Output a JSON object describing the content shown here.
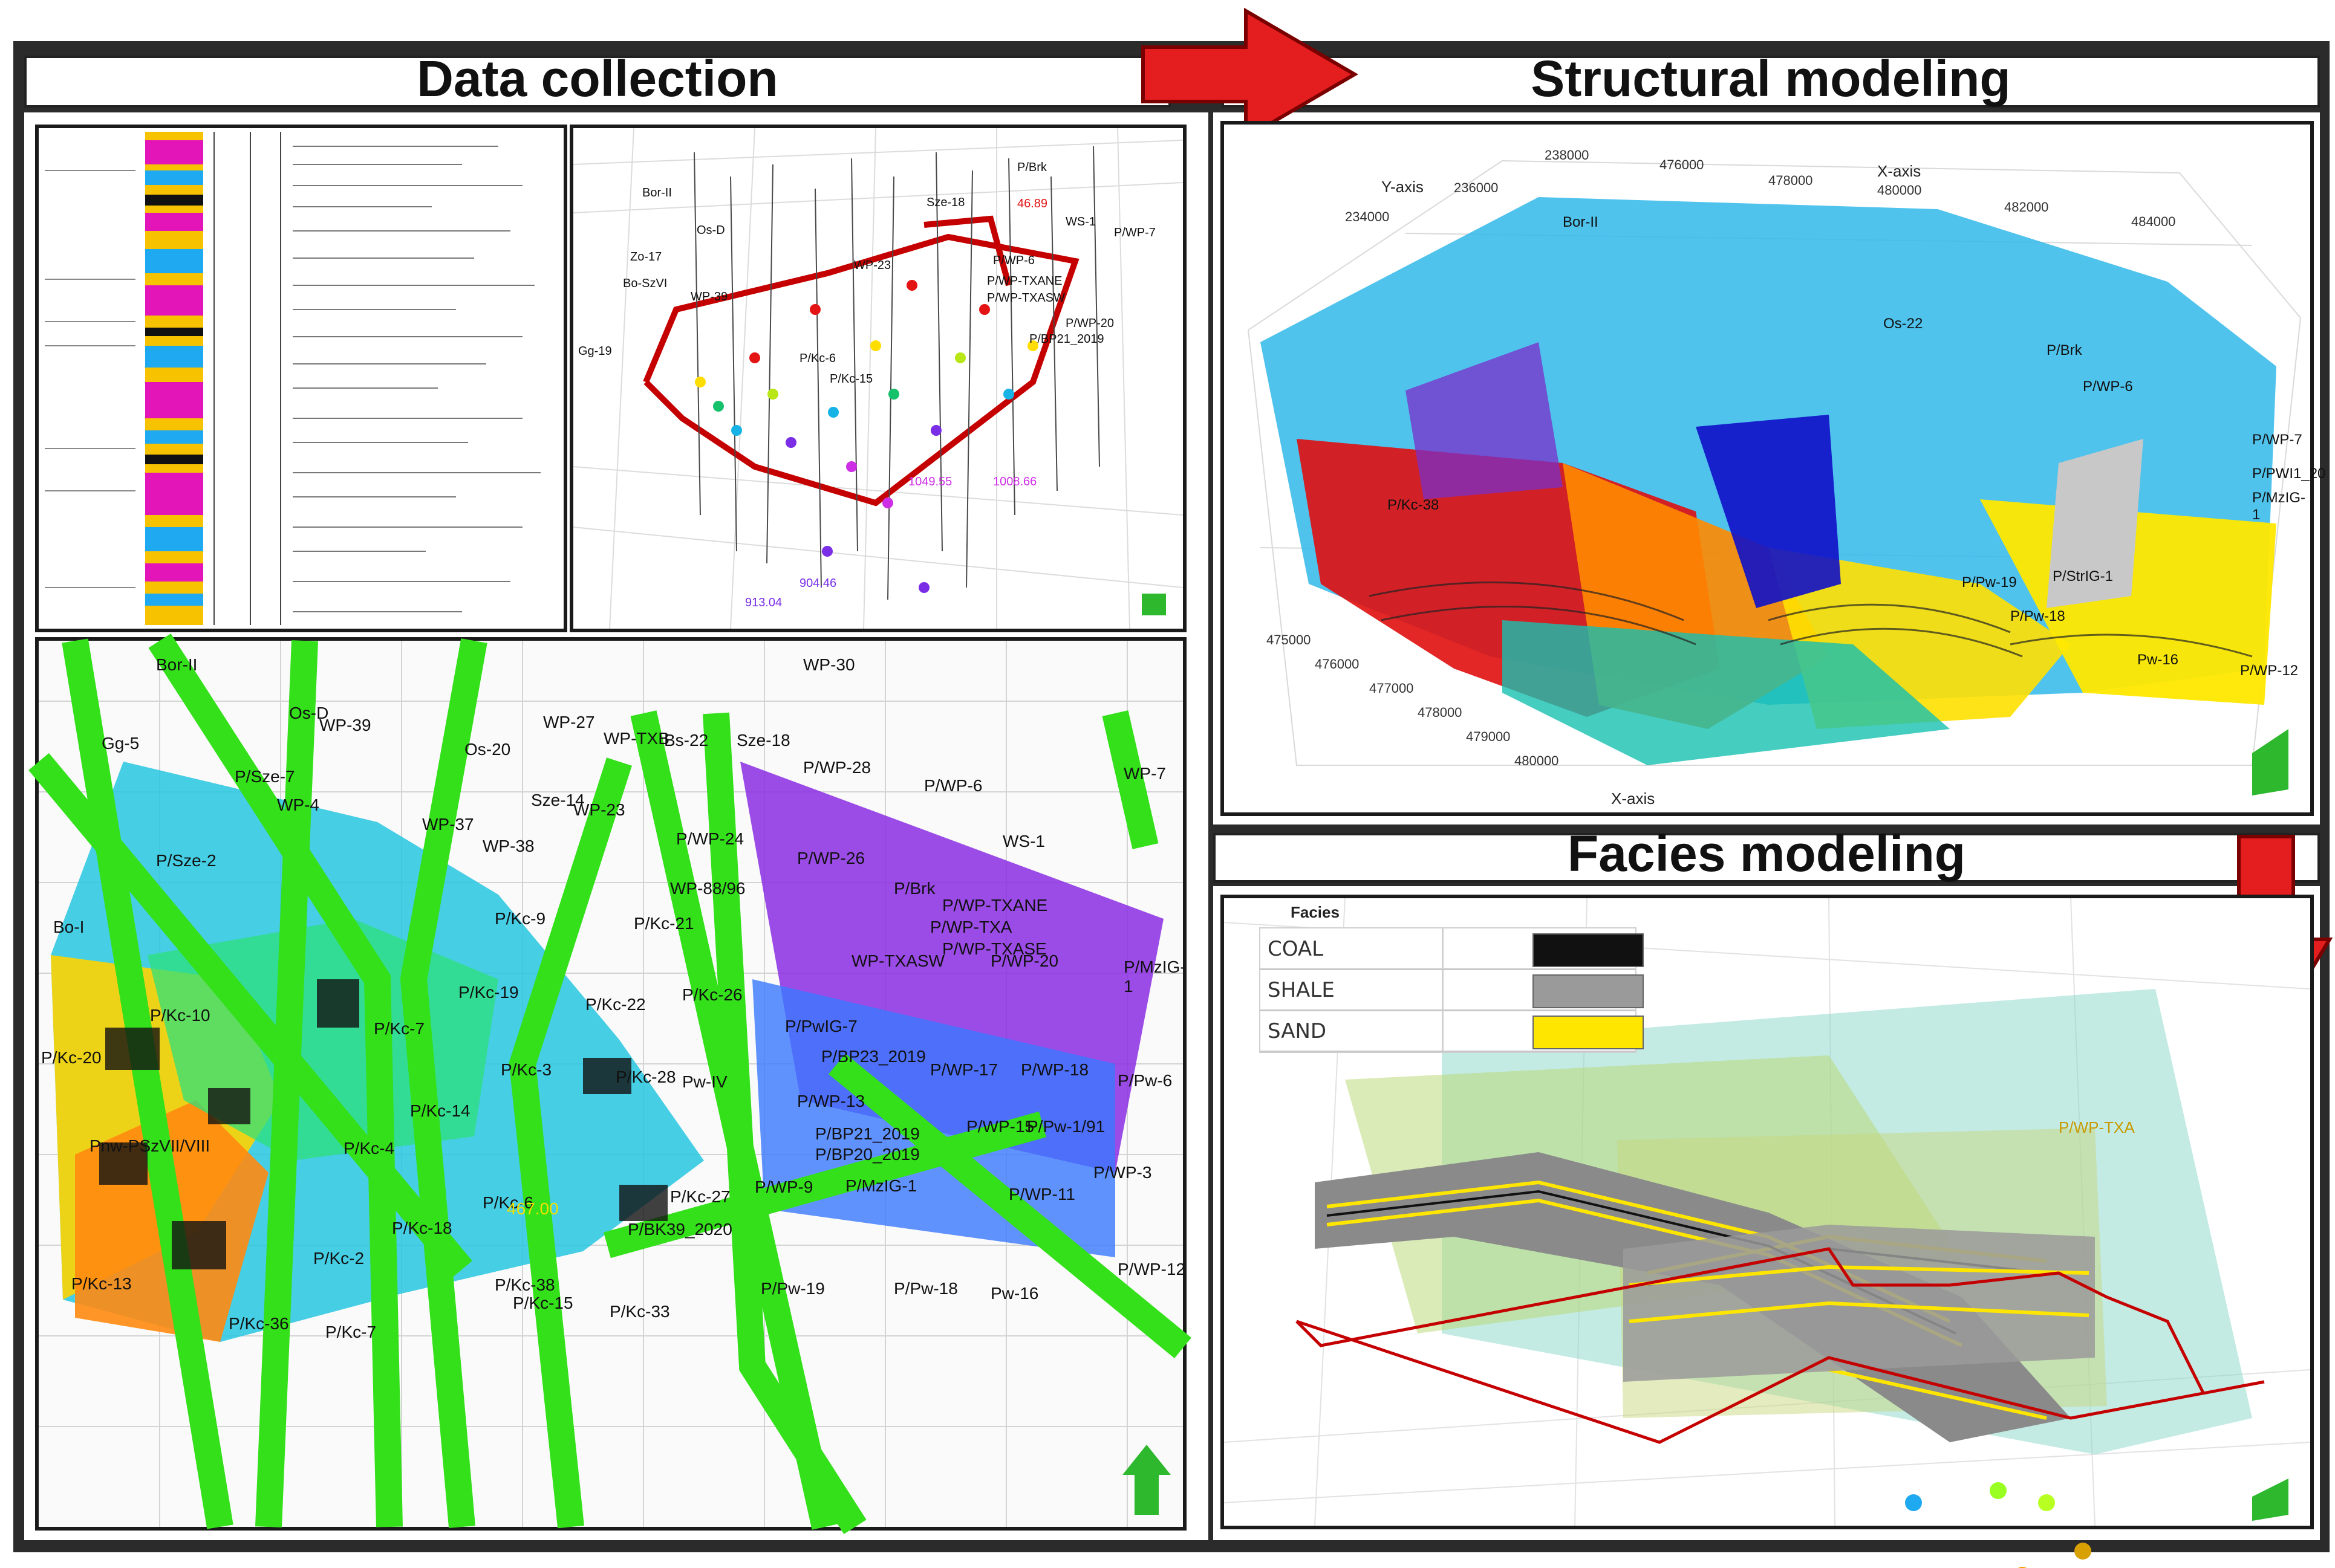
{
  "panels": {
    "data_collection": {
      "title": "Data collection"
    },
    "structural_modeling": {
      "title": "Structural modeling",
      "axis_titles": {
        "x": "X-axis",
        "y": "Y-axis"
      },
      "y_ticks": [
        "234000",
        "236000",
        "238000"
      ],
      "x_ticks_top": [
        "476000",
        "478000",
        "480000",
        "482000",
        "484000"
      ],
      "x_ticks_left": [
        "475000",
        "476000",
        "477000",
        "478000",
        "479000",
        "480000"
      ],
      "well_labels": [
        "Bor-II",
        "Os-22",
        "P/Brk",
        "P/WP-6",
        "P/PWI1_20",
        "P/MzIG-1",
        "P/WP-7",
        "P/Kc-38",
        "P/Pw-19",
        "P/Pw-18",
        "P/StrIG-1",
        "Pw-16",
        "P/WP-12"
      ]
    },
    "facies_modeling": {
      "title": "Facies modeling",
      "legend_title": "Facies",
      "legend": [
        {
          "label": "COAL",
          "color": "#111111"
        },
        {
          "label": "SHALE",
          "color": "#9a9a9a"
        },
        {
          "label": "SAND",
          "color": "#ffe600"
        }
      ],
      "well_labels": [
        "P/WP-TXA"
      ]
    },
    "well_map": {
      "labels": [
        "WP-30",
        "Bor-II",
        "Os-D",
        "Gg-5",
        "WP-39",
        "WP-27",
        "Os-20",
        "WP-TXB",
        "Bs-22",
        "Sze-18",
        "P/Sze-7",
        "P/WP-28",
        "P/WP-6",
        "WP-7",
        "WP-4",
        "WP-37",
        "Sze-14",
        "WP-23",
        "WP-38",
        "P/WP-24",
        "P/WP-26",
        "WS-1",
        "P/Sze-2",
        "WP-88/96",
        "P/Brk",
        "P/WP-TXANE",
        "P/Kc-9",
        "P/Kc-21",
        "P/WP-TXA",
        "P/WP-TXASE",
        "WP-TXASW",
        "P/WP-20",
        "Bo-I",
        "P/MzIG-1",
        "P/Kc-19",
        "P/Kc-22",
        "P/Kc-26",
        "P/PwIG-7",
        "P/Kc-10",
        "P/Kc-7",
        "P/BP23_2019",
        "P/WP-17",
        "P/WP-18",
        "P/Pw-6",
        "P/Kc-20",
        "P/Kc-3",
        "P/Kc-28",
        "Pw-IV",
        "P/WP-13",
        "P/Kc-14",
        "P/BP21_2019",
        "P/WP-15",
        "P/Pw-1/91",
        "Pnw-PSzVII/VIII",
        "P/Kc-4",
        "P/BP20_2019",
        "P/WP-3",
        "P/WP-9",
        "P/MzIG-1",
        "P/WP-11",
        "P/Kc-6",
        "P/Kc-27",
        "P/Kc-18",
        "P/BK39_2020",
        "P/Kc-2",
        "P/Kc-38",
        "P/Pw-19",
        "P/Pw-18",
        "Pw-16",
        "P/WP-12",
        "P/Kc-15",
        "P/Kc-33",
        "P/Kc-36",
        "P/Kc-7",
        "P/Kc-13",
        "467.00"
      ]
    },
    "well_3d": {
      "labels": [
        "P/Brk",
        "Bor-II",
        "Os-D",
        "Zo-17",
        "Bo-SzVI",
        "WP-39",
        "Sze-18",
        "WS-1",
        "P/WP-6",
        "P/WP-7",
        "P/WP-TXANE",
        "P/WP-TXASW",
        "P/BP21_2019",
        "P/WP-20",
        "WP-23",
        "P/Kc-6",
        "P/Kc-15",
        "Gg-19",
        "46.89",
        "1049.55",
        "1008.66",
        "913.04",
        "904.46"
      ]
    }
  }
}
